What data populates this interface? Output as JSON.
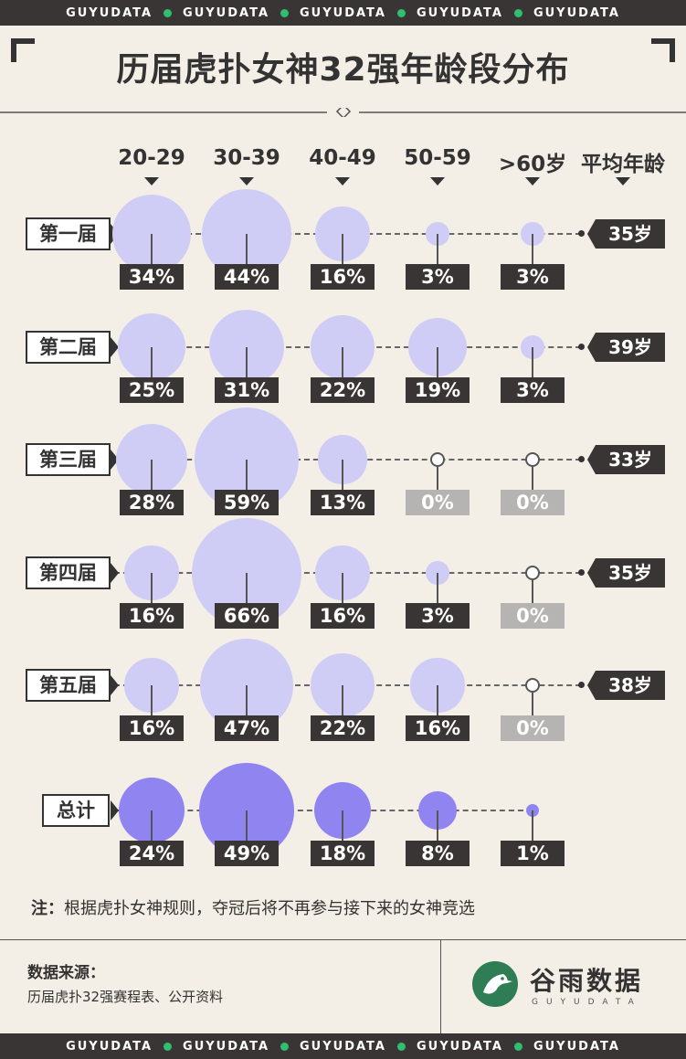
{
  "band_text": "GUYUDATA",
  "band_repeat": 5,
  "title": "历届虎扑女神32强年龄段分布",
  "colors": {
    "band": "#3a3535",
    "band_dot": "#2fbf71",
    "circle_round": "#cfcdf6",
    "circle_total": "#8f84f0",
    "badge_dark": "#3a3535",
    "badge_zero": "#b5b4b2",
    "background": "#f4efe6",
    "logo": "#2f7d55"
  },
  "columns": [
    "20-29",
    "30-39",
    "40-49",
    "50-59",
    ">60岁",
    "平均年龄"
  ],
  "chart_data": {
    "type": "bubble-matrix",
    "categories": [
      "20-29",
      "30-39",
      "40-49",
      "50-59",
      ">60岁"
    ],
    "series": [
      {
        "name": "第一届",
        "values": [
          34,
          44,
          16,
          3,
          3
        ],
        "labels": [
          "34%",
          "44%",
          "16%",
          "3%",
          "3%"
        ],
        "average": "35岁"
      },
      {
        "name": "第二届",
        "values": [
          25,
          31,
          22,
          19,
          3
        ],
        "labels": [
          "25%",
          "31%",
          "22%",
          "19%",
          "3%"
        ],
        "average": "39岁"
      },
      {
        "name": "第三届",
        "values": [
          28,
          59,
          13,
          0,
          0
        ],
        "labels": [
          "28%",
          "59%",
          "13%",
          "0%",
          "0%"
        ],
        "average": "33岁"
      },
      {
        "name": "第四届",
        "values": [
          16,
          66,
          16,
          3,
          0
        ],
        "labels": [
          "16%",
          "66%",
          "16%",
          "3%",
          "0%"
        ],
        "average": "35岁"
      },
      {
        "name": "第五届",
        "values": [
          16,
          47,
          22,
          16,
          0
        ],
        "labels": [
          "16%",
          "47%",
          "22%",
          "16%",
          "0%"
        ],
        "average": "38岁"
      },
      {
        "name": "总计",
        "values": [
          24,
          49,
          18,
          8,
          1
        ],
        "labels": [
          "24%",
          "49%",
          "18%",
          "8%",
          "1%"
        ],
        "total": true
      }
    ]
  },
  "note_label": "注：",
  "note_text": "根据虎扑女神规则，夺冠后将不再参与接下来的女神竞选",
  "source_label": "数据来源：",
  "source_text": "历届虎扑32强赛程表、公开资料",
  "logo_name": "谷雨数据",
  "logo_sub": "GUYUDATA"
}
